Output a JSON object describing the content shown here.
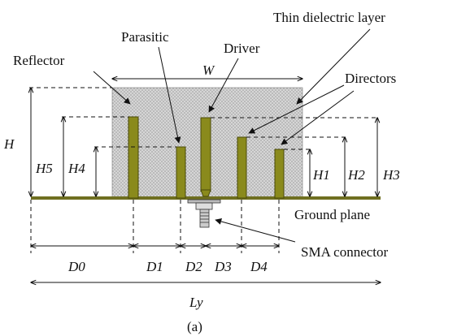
{
  "labels": {
    "thin_dielectric_layer": "Thin dielectric layer",
    "parasitic": "Parasitic",
    "driver": "Driver",
    "reflector": "Reflector",
    "directors": "Directors",
    "ground_plane": "Ground plane",
    "sma_connector": "SMA connector",
    "caption": "(a)"
  },
  "dimensions": {
    "W": "W",
    "H": "H",
    "H5": "H5",
    "H4": "H4",
    "H1": "H1",
    "H2": "H2",
    "H3": "H3",
    "D0": "D0",
    "D1": "D1",
    "D2": "D2",
    "D3": "D3",
    "D4": "D4",
    "Ly": "Ly"
  },
  "colors": {
    "dielectric": "#c9c9c9",
    "element_fill": "#8a8a1c",
    "element_stroke": "#4a4a0a",
    "ground": "#6f6f20",
    "line": "#111111"
  }
}
